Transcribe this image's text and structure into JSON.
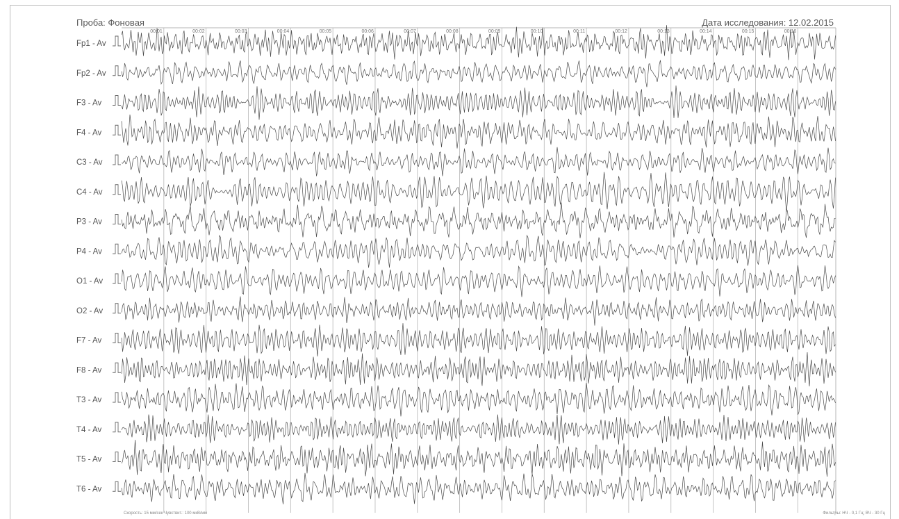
{
  "header": {
    "probe": "Проба: Фоновая",
    "exam_date": "Дата исследования: 12.02.2015"
  },
  "chart_data": {
    "type": "line",
    "channels": [
      "Fp1 - Av",
      "Fp2 - Av",
      "F3 - Av",
      "F4 - Av",
      "C3 - Av",
      "C4 - Av",
      "P3 - Av",
      "P4 - Av",
      "O1 - Av",
      "O2 - Av",
      "F7 - Av",
      "F8 - Av",
      "T3 - Av",
      "T4 - Av",
      "T5 - Av",
      "T6 - Av"
    ],
    "time_ticks": [
      "00:01",
      "00:02",
      "00:03",
      "00:04",
      "00:05",
      "00:06",
      "00:07",
      "00:08",
      "00:09",
      "00:10",
      "00:11",
      "00:12",
      "00:13",
      "00:14",
      "00:15",
      "00:16"
    ],
    "xlim_seconds": [
      0,
      16.9
    ],
    "grid": "vertical lines at each second",
    "footer_left": "Скорость: 15 мм/сек   Чувствит.: 100 мкВ/мм",
    "footer_right": "Фильтры: НЧ - 0,1 Гц; ВЧ - 30 Гц",
    "colors": {
      "trace": "#4a4a4a",
      "grid": "#b5b5b5",
      "label": "#555555"
    }
  }
}
